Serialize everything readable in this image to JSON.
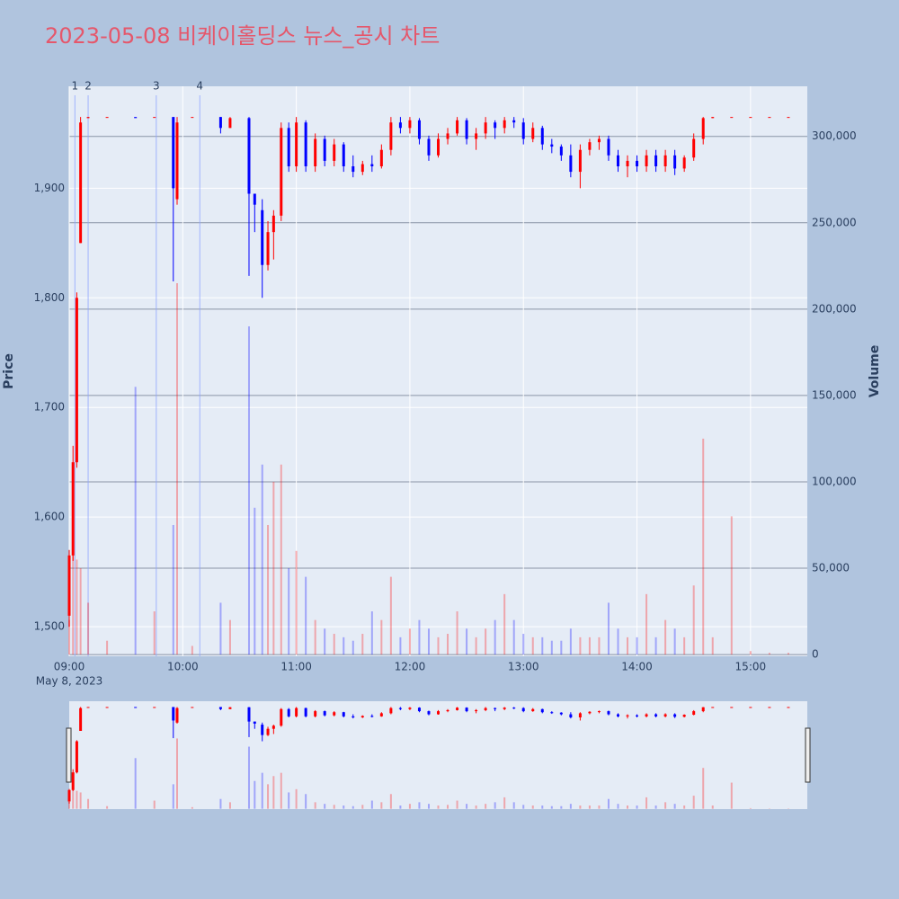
{
  "chart_data": {
    "type": "candlestick",
    "title": "2023-05-08 비케이홀딩스 뉴스_공시 차트",
    "ylabel": "Price",
    "y2label": "Volume",
    "x_date_label": "May 8, 2023",
    "increasing_color": "#ff0000",
    "decreasing_color": "#0000ff",
    "x": [
      "09:00",
      "09:02",
      "09:04",
      "09:06",
      "09:10",
      "09:20",
      "09:35",
      "09:45",
      "09:55",
      "09:57",
      "10:05",
      "10:20",
      "10:25",
      "10:35",
      "10:38",
      "10:42",
      "10:45",
      "10:48",
      "10:52",
      "10:56",
      "11:00",
      "11:05",
      "11:10",
      "11:15",
      "11:20",
      "11:25",
      "11:30",
      "11:35",
      "11:40",
      "11:45",
      "11:50",
      "11:55",
      "12:00",
      "12:05",
      "12:10",
      "12:15",
      "12:20",
      "12:25",
      "12:30",
      "12:35",
      "12:40",
      "12:45",
      "12:50",
      "12:55",
      "13:00",
      "13:05",
      "13:10",
      "13:15",
      "13:20",
      "13:25",
      "13:30",
      "13:35",
      "13:40",
      "13:45",
      "13:50",
      "13:55",
      "14:00",
      "14:05",
      "14:10",
      "14:15",
      "14:20",
      "14:25",
      "14:30",
      "14:35",
      "14:40",
      "14:50",
      "15:00",
      "15:10",
      "15:20"
    ],
    "open": [
      1510,
      1565,
      1650,
      1850,
      1964,
      1965,
      1965,
      1965,
      1965,
      1890,
      1965,
      1965,
      1955,
      1964,
      1895,
      1880,
      1830,
      1860,
      1875,
      1955,
      1920,
      1960,
      1920,
      1945,
      1925,
      1940,
      1920,
      1915,
      1922,
      1920,
      1935,
      1960,
      1955,
      1962,
      1945,
      1930,
      1945,
      1950,
      1962,
      1945,
      1950,
      1960,
      1955,
      1962,
      1960,
      1945,
      1955,
      1940,
      1938,
      1930,
      1915,
      1935,
      1942,
      1945,
      1930,
      1920,
      1925,
      1920,
      1930,
      1920,
      1930,
      1918,
      1928,
      1945,
      1964,
      1965,
      1965,
      1965,
      1965
    ],
    "high": [
      1570,
      1665,
      1805,
      1965,
      1965,
      1965,
      1965,
      1965,
      1965,
      1965,
      1965,
      1965,
      1965,
      1965,
      1895,
      1890,
      1870,
      1880,
      1960,
      1960,
      1965,
      1962,
      1950,
      1948,
      1945,
      1942,
      1930,
      1925,
      1930,
      1940,
      1965,
      1965,
      1965,
      1964,
      1948,
      1950,
      1955,
      1965,
      1964,
      1955,
      1965,
      1962,
      1965,
      1965,
      1964,
      1960,
      1957,
      1945,
      1940,
      1940,
      1940,
      1945,
      1948,
      1948,
      1935,
      1930,
      1930,
      1935,
      1935,
      1935,
      1935,
      1930,
      1950,
      1965,
      1965,
      1965,
      1965,
      1965,
      1965
    ],
    "low": [
      1500,
      1560,
      1645,
      1850,
      1964,
      1965,
      1965,
      1965,
      1815,
      1885,
      1965,
      1950,
      1955,
      1820,
      1860,
      1800,
      1825,
      1835,
      1870,
      1915,
      1915,
      1915,
      1915,
      1920,
      1920,
      1915,
      1910,
      1912,
      1915,
      1918,
      1930,
      1950,
      1950,
      1940,
      1925,
      1928,
      1940,
      1948,
      1940,
      1935,
      1945,
      1945,
      1950,
      1955,
      1940,
      1942,
      1935,
      1932,
      1925,
      1910,
      1900,
      1930,
      1935,
      1925,
      1915,
      1910,
      1915,
      1915,
      1915,
      1915,
      1912,
      1915,
      1925,
      1940,
      1964,
      1965,
      1965,
      1965,
      1965
    ],
    "close": [
      1565,
      1650,
      1800,
      1960,
      1965,
      1965,
      1964,
      1965,
      1900,
      1960,
      1965,
      1955,
      1964,
      1895,
      1885,
      1830,
      1860,
      1875,
      1955,
      1920,
      1960,
      1920,
      1945,
      1925,
      1940,
      1920,
      1915,
      1922,
      1920,
      1935,
      1960,
      1955,
      1962,
      1945,
      1930,
      1945,
      1950,
      1962,
      1945,
      1950,
      1960,
      1955,
      1962,
      1960,
      1945,
      1955,
      1940,
      1938,
      1930,
      1915,
      1935,
      1942,
      1945,
      1930,
      1920,
      1925,
      1920,
      1930,
      1920,
      1930,
      1918,
      1928,
      1945,
      1964,
      1965,
      1965,
      1965,
      1965,
      1965
    ],
    "volume": [
      20000,
      60000,
      55000,
      50000,
      30000,
      8000,
      155000,
      25000,
      75000,
      215000,
      5000,
      30000,
      20000,
      190000,
      85000,
      110000,
      75000,
      100000,
      110000,
      50000,
      60000,
      45000,
      20000,
      15000,
      12000,
      10000,
      8000,
      12000,
      25000,
      20000,
      45000,
      10000,
      15000,
      20000,
      15000,
      10000,
      12000,
      25000,
      15000,
      10000,
      15000,
      20000,
      35000,
      20000,
      12000,
      10000,
      10000,
      8000,
      8000,
      15000,
      10000,
      10000,
      10000,
      30000,
      15000,
      10000,
      10000,
      35000,
      10000,
      20000,
      15000,
      10000,
      40000,
      125000,
      10000,
      80000,
      2000,
      1000,
      1000
    ],
    "xlim": [
      "09:00",
      "15:30"
    ],
    "xticks": [
      "09:00",
      "10:00",
      "11:00",
      "12:00",
      "13:00",
      "14:00",
      "15:00"
    ],
    "ylim": [
      1473,
      1993
    ],
    "yticks": [
      {
        "value": 1500,
        "label": "1,500"
      },
      {
        "value": 1600,
        "label": "1,600"
      },
      {
        "value": 1700,
        "label": "1,700"
      },
      {
        "value": 1800,
        "label": "1,800"
      },
      {
        "value": 1900,
        "label": "1,900"
      }
    ],
    "y2lim": [
      -1000,
      329000
    ],
    "y2ticks": [
      0,
      {
        "value": 50000,
        "label": "50,000"
      },
      {
        "value": 100000,
        "label": "100,000"
      },
      {
        "value": 150000,
        "label": "150,000"
      },
      {
        "value": 200000,
        "label": "200,000"
      },
      {
        "value": 250000,
        "label": "250,000"
      },
      {
        "value": 300000,
        "label": "300,000"
      }
    ],
    "annotations": [
      {
        "x": "09:03",
        "text": "1"
      },
      {
        "x": "09:10",
        "text": "2"
      },
      {
        "x": "09:46",
        "text": "3"
      },
      {
        "x": "10:09",
        "text": "4"
      }
    ]
  }
}
